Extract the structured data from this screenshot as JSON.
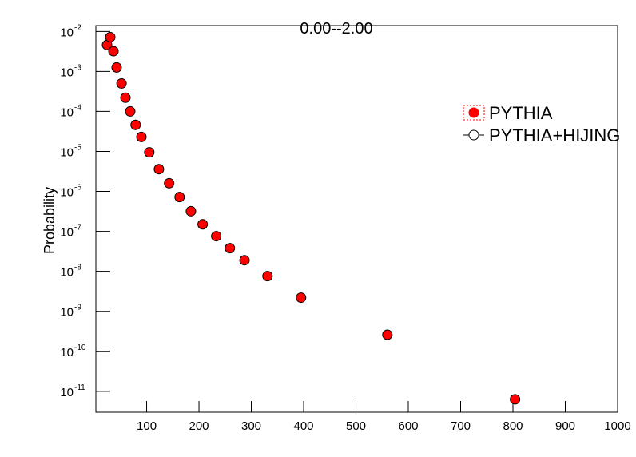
{
  "chart_data": {
    "type": "scatter",
    "title": "0.00--2.00",
    "y_label": "Probability",
    "x": [
      24.4,
      30.5,
      36.6,
      42.7,
      52,
      59.5,
      68.6,
      79,
      90,
      105,
      123.5,
      143,
      163,
      184.6,
      207,
      233,
      259,
      287,
      331,
      395,
      560,
      804
    ],
    "series": [
      {
        "name": "PYTHIA",
        "color": "#ff0000",
        "marker": "filled-circle",
        "values": [
          0.0046,
          0.0072,
          0.0032,
          0.00126,
          0.0005,
          0.00022,
          0.0001,
          4.6e-05,
          2.3e-05,
          9.5e-06,
          3.6e-06,
          1.6e-06,
          7.2e-07,
          3.2e-07,
          1.5e-07,
          7.6e-08,
          3.8e-08,
          1.9e-08,
          7.6e-09,
          2.2e-09,
          2.6e-10,
          6.3e-12
        ]
      },
      {
        "name": "PYTHIA+HIJING",
        "color": "#000000",
        "marker": "open-circle",
        "values": [
          null,
          null,
          null,
          null,
          null,
          null,
          null,
          null,
          null,
          null,
          null,
          null,
          null,
          null,
          null,
          null,
          null,
          null,
          null,
          null,
          null,
          null
        ]
      }
    ],
    "xlim": [
      3,
      1000
    ],
    "xticks": [
      100,
      200,
      300,
      400,
      500,
      600,
      700,
      800,
      900,
      1000
    ],
    "ylim": [
      3e-12,
      0.014
    ],
    "log_y": true,
    "yticks": [
      {
        "value": 0.01,
        "label": "10",
        "exponent": "-2"
      },
      {
        "value": 0.001,
        "label": "10",
        "exponent": "-3"
      },
      {
        "value": 0.0001,
        "label": "10",
        "exponent": "-4"
      },
      {
        "value": 1e-05,
        "label": "10",
        "exponent": "-5"
      },
      {
        "value": 1e-06,
        "label": "10",
        "exponent": "-6"
      },
      {
        "value": 1e-07,
        "label": "10",
        "exponent": "-7"
      },
      {
        "value": 1e-08,
        "label": "10",
        "exponent": "-8"
      },
      {
        "value": 1e-09,
        "label": "10",
        "exponent": "-9"
      },
      {
        "value": 1e-10,
        "label": "10",
        "exponent": "-10"
      },
      {
        "value": 1e-11,
        "label": "10",
        "exponent": "-11"
      }
    ],
    "grid": false
  }
}
